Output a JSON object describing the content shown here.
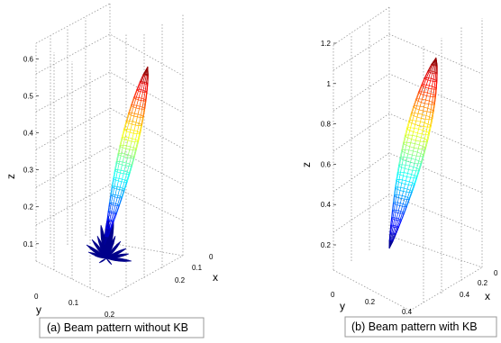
{
  "chart_data": [
    {
      "type": "surface",
      "title": "",
      "caption": "(a) Beam pattern without KB",
      "zlabel": "z",
      "ylabel": "y",
      "xlabel": "x",
      "z_ticks": [
        "0.1",
        "0.2",
        "0.3",
        "0.4",
        "0.5",
        "0.6"
      ],
      "zlim": [
        0.08,
        0.7
      ],
      "y_ticks": [
        "0",
        "0.1",
        "0.2"
      ],
      "x_ticks": [
        "0",
        "0.1",
        "0.2"
      ],
      "grid": true,
      "colormap": "jet",
      "main_lobe": {
        "base_z": 0.12,
        "peak_z": 0.6
      },
      "side_lobes": true
    },
    {
      "type": "surface",
      "title": "",
      "caption": "(b) Beam pattern with KB",
      "zlabel": "z",
      "ylabel": "y",
      "xlabel": "x",
      "z_ticks": [
        "0.2",
        "0.4",
        "0.6",
        "0.8",
        "1",
        "1.2"
      ],
      "zlim": [
        0.1,
        1.25
      ],
      "y_ticks": [
        "0",
        "0.2",
        "0.4"
      ],
      "x_ticks": [
        "0",
        "0.2",
        "0.4"
      ],
      "grid": true,
      "colormap": "jet",
      "main_lobe": {
        "base_z": 0.17,
        "peak_z": 1.13
      },
      "side_lobes": false
    }
  ],
  "colors": {
    "grid": "#9a9a9a",
    "side_lobes": "#00008b",
    "caption_border": "#999999"
  }
}
